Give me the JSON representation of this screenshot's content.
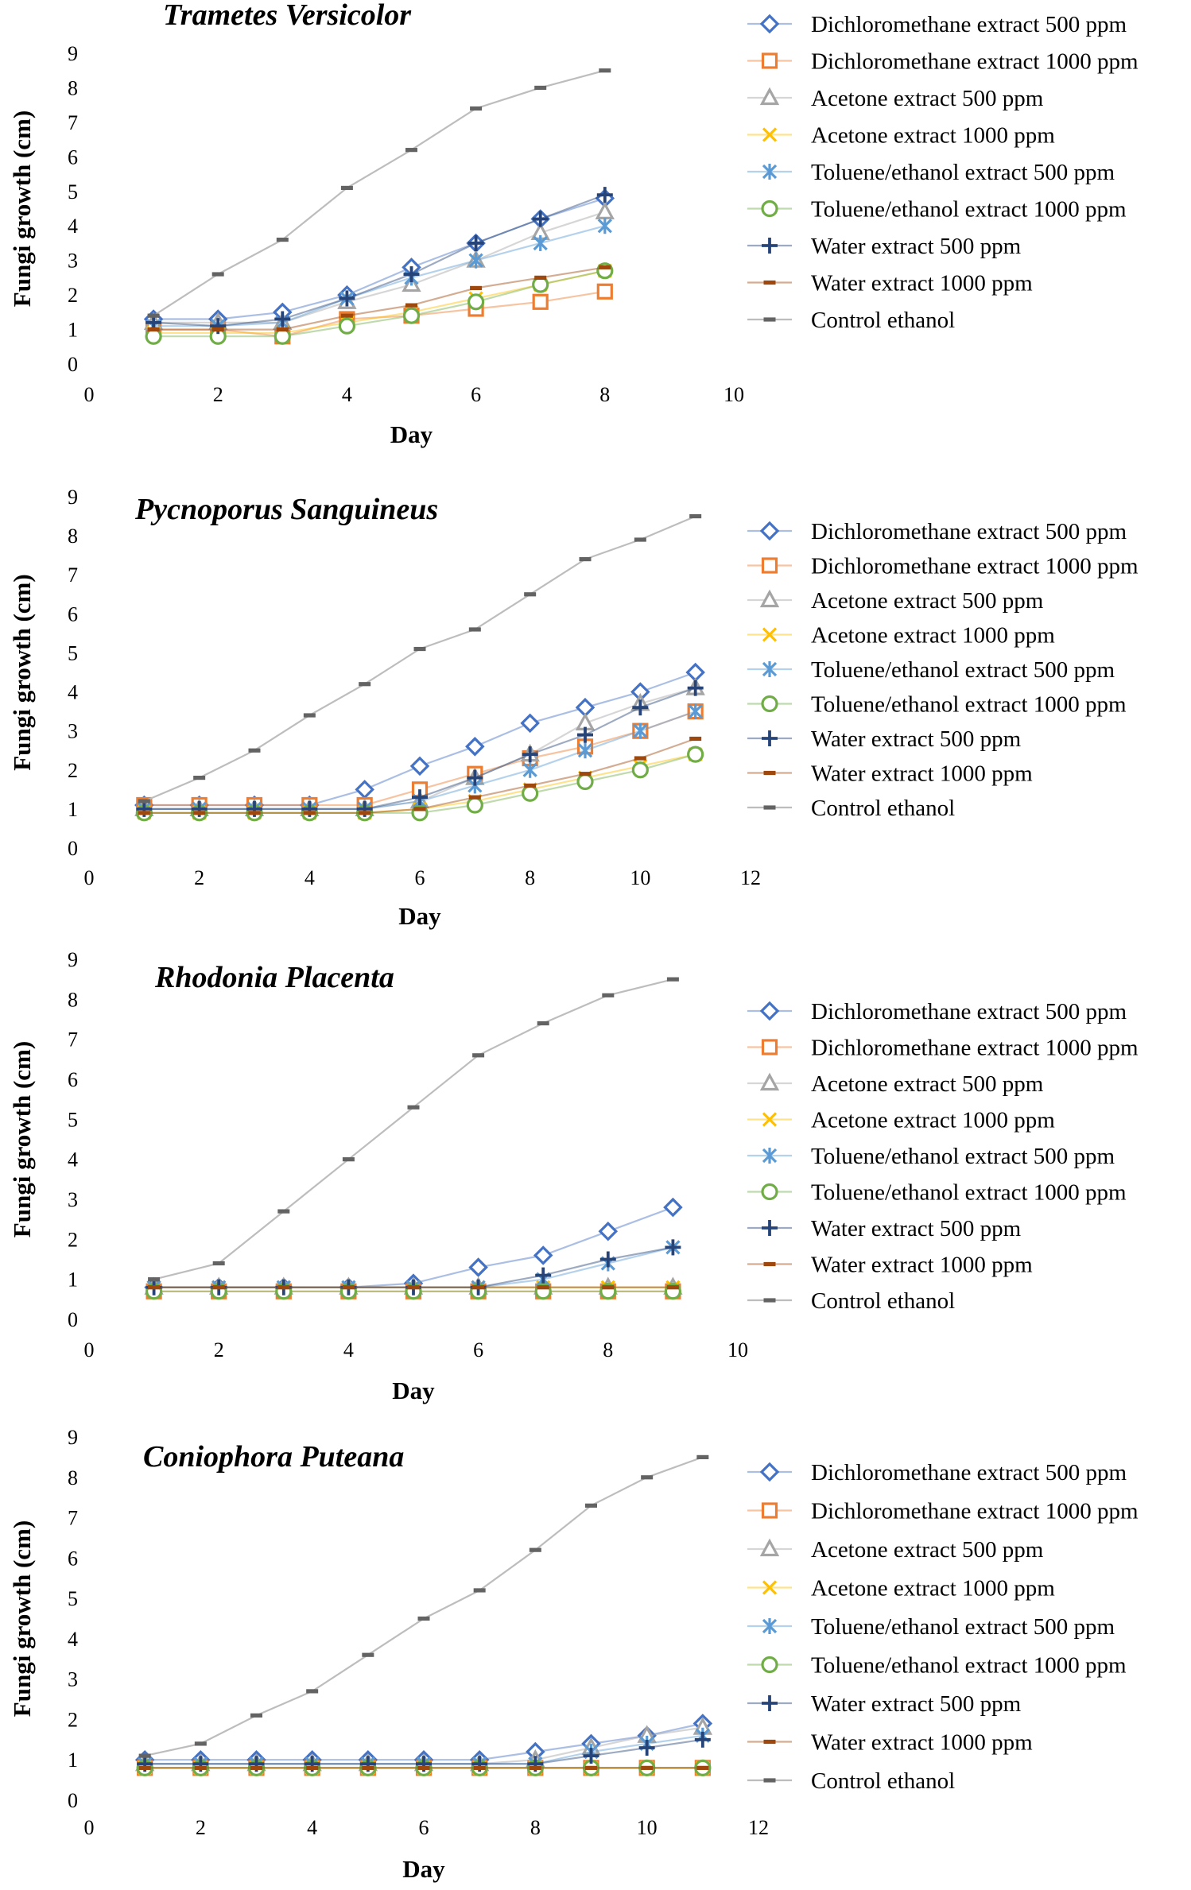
{
  "series_styles": [
    {
      "name": "Dichloromethane extract 500 ppm",
      "color": "#4472C4",
      "marker": "diamond"
    },
    {
      "name": "Dichloromethane extract 1000 ppm",
      "color": "#ED7D31",
      "marker": "square"
    },
    {
      "name": "Acetone extract 500 ppm",
      "color": "#A5A5A5",
      "marker": "triangle"
    },
    {
      "name": "Acetone extract 1000 ppm",
      "color": "#FFC000",
      "marker": "x"
    },
    {
      "name": "Toluene/ethanol extract 500 ppm",
      "color": "#5B9BD5",
      "marker": "asterisk"
    },
    {
      "name": "Toluene/ethanol extract 1000 ppm",
      "color": "#70AD47",
      "marker": "circle"
    },
    {
      "name": "Water extract 500 ppm",
      "color": "#264478",
      "marker": "plus"
    },
    {
      "name": "Water extract 1000 ppm",
      "color": "#9E480E",
      "marker": "dash"
    },
    {
      "name": "Control ethanol",
      "color": "#636363",
      "marker": "dash"
    }
  ],
  "chart_data": [
    {
      "type": "line",
      "title": "Trametes Versicolor",
      "xlabel": "Day",
      "ylabel": "Fungi growth (cm)",
      "xlim": [
        0,
        10
      ],
      "ylim": [
        0,
        9
      ],
      "xticks": [
        "0",
        "2",
        "4",
        "6",
        "8",
        "10"
      ],
      "yticks": [
        "0",
        "1",
        "2",
        "3",
        "4",
        "5",
        "6",
        "7",
        "8",
        "9"
      ],
      "x": [
        1,
        2,
        3,
        4,
        5,
        6,
        7,
        8
      ],
      "series": [
        {
          "name": "Dichloromethane extract 500 ppm",
          "values": [
            1.3,
            1.3,
            1.5,
            2.0,
            2.8,
            3.5,
            4.2,
            4.8
          ]
        },
        {
          "name": "Dichloromethane extract 1000 ppm",
          "values": [
            1.0,
            1.0,
            0.8,
            1.3,
            1.4,
            1.6,
            1.8,
            2.1
          ]
        },
        {
          "name": "Acetone extract 500 ppm",
          "values": [
            1.2,
            1.2,
            1.2,
            1.8,
            2.3,
            3.0,
            3.8,
            4.4
          ]
        },
        {
          "name": "Acetone extract 1000 ppm",
          "values": [
            0.9,
            0.9,
            0.9,
            1.2,
            1.5,
            1.9,
            2.3,
            2.7
          ]
        },
        {
          "name": "Toluene/ethanol extract 500 ppm",
          "values": [
            1.1,
            1.1,
            1.2,
            1.9,
            2.5,
            3.0,
            3.5,
            4.0
          ]
        },
        {
          "name": "Toluene/ethanol extract 1000 ppm",
          "values": [
            0.8,
            0.8,
            0.8,
            1.1,
            1.4,
            1.8,
            2.3,
            2.7
          ]
        },
        {
          "name": "Water extract 500 ppm",
          "values": [
            1.2,
            1.1,
            1.3,
            1.9,
            2.6,
            3.5,
            4.2,
            4.9
          ]
        },
        {
          "name": "Water extract 1000 ppm",
          "values": [
            1.0,
            1.0,
            1.0,
            1.4,
            1.7,
            2.2,
            2.5,
            2.8
          ]
        },
        {
          "name": "Control ethanol",
          "values": [
            1.4,
            2.6,
            3.6,
            5.1,
            6.2,
            7.4,
            8.0,
            8.5
          ]
        }
      ]
    },
    {
      "type": "line",
      "title": "Pycnoporus Sanguineus",
      "xlabel": "Day",
      "ylabel": "Fungi growth (cm)",
      "xlim": [
        0,
        12
      ],
      "ylim": [
        0,
        9
      ],
      "xticks": [
        "0",
        "2",
        "4",
        "6",
        "8",
        "10",
        "12"
      ],
      "yticks": [
        "0",
        "1",
        "2",
        "3",
        "4",
        "5",
        "6",
        "7",
        "8",
        "9"
      ],
      "x": [
        1,
        2,
        3,
        4,
        5,
        6,
        7,
        8,
        9,
        10,
        11
      ],
      "series": [
        {
          "name": "Dichloromethane extract 500 ppm",
          "values": [
            1.1,
            1.1,
            1.1,
            1.1,
            1.5,
            2.1,
            2.6,
            3.2,
            3.6,
            4.0,
            4.5
          ]
        },
        {
          "name": "Dichloromethane extract 1000 ppm",
          "values": [
            1.1,
            1.1,
            1.1,
            1.1,
            1.1,
            1.5,
            1.9,
            2.3,
            2.6,
            3.0,
            3.5
          ]
        },
        {
          "name": "Acetone extract 500 ppm",
          "values": [
            1.0,
            1.0,
            1.0,
            1.0,
            1.0,
            1.2,
            1.8,
            2.4,
            3.2,
            3.7,
            4.1
          ]
        },
        {
          "name": "Acetone extract 1000 ppm",
          "values": [
            0.9,
            0.9,
            0.9,
            0.9,
            0.9,
            1.0,
            1.2,
            1.5,
            1.8,
            2.1,
            2.4
          ]
        },
        {
          "name": "Toluene/ethanol extract 500 ppm",
          "values": [
            1.0,
            1.0,
            1.0,
            1.0,
            1.0,
            1.2,
            1.6,
            2.0,
            2.5,
            3.0,
            3.5
          ]
        },
        {
          "name": "Toluene/ethanol extract 1000 ppm",
          "values": [
            0.9,
            0.9,
            0.9,
            0.9,
            0.9,
            0.9,
            1.1,
            1.4,
            1.7,
            2.0,
            2.4
          ]
        },
        {
          "name": "Water extract 500 ppm",
          "values": [
            1.0,
            1.0,
            1.0,
            1.0,
            1.0,
            1.3,
            1.8,
            2.4,
            2.9,
            3.6,
            4.1
          ]
        },
        {
          "name": "Water extract 1000 ppm",
          "values": [
            0.9,
            0.9,
            0.9,
            0.9,
            0.9,
            1.0,
            1.3,
            1.6,
            1.9,
            2.3,
            2.8
          ]
        },
        {
          "name": "Control ethanol",
          "values": [
            1.2,
            1.8,
            2.5,
            3.4,
            4.2,
            5.1,
            5.6,
            6.5,
            7.4,
            7.9,
            8.5
          ]
        }
      ]
    },
    {
      "type": "line",
      "title": "Rhodonia Placenta",
      "xlabel": "Day",
      "ylabel": "Fungi growth (cm)",
      "xlim": [
        0,
        10
      ],
      "ylim": [
        0,
        9
      ],
      "xticks": [
        "0",
        "2",
        "4",
        "6",
        "8",
        "10"
      ],
      "yticks": [
        "0",
        "1",
        "2",
        "3",
        "4",
        "5",
        "6",
        "7",
        "8",
        "9"
      ],
      "x": [
        1,
        2,
        3,
        4,
        5,
        6,
        7,
        8,
        9
      ],
      "series": [
        {
          "name": "Dichloromethane extract 500 ppm",
          "values": [
            0.8,
            0.8,
            0.8,
            0.8,
            0.9,
            1.3,
            1.6,
            2.2,
            2.8
          ]
        },
        {
          "name": "Dichloromethane extract 1000 ppm",
          "values": [
            0.7,
            0.7,
            0.7,
            0.7,
            0.7,
            0.7,
            0.7,
            0.7,
            0.7
          ]
        },
        {
          "name": "Acetone extract 500 ppm",
          "values": [
            0.8,
            0.8,
            0.8,
            0.8,
            0.8,
            0.8,
            0.8,
            0.8,
            0.8
          ]
        },
        {
          "name": "Acetone extract 1000 ppm",
          "values": [
            0.8,
            0.8,
            0.8,
            0.8,
            0.8,
            0.8,
            0.8,
            0.8,
            0.8
          ]
        },
        {
          "name": "Toluene/ethanol extract 500 ppm",
          "values": [
            0.8,
            0.8,
            0.8,
            0.8,
            0.8,
            0.8,
            1.0,
            1.4,
            1.8
          ]
        },
        {
          "name": "Toluene/ethanol extract 1000 ppm",
          "values": [
            0.7,
            0.7,
            0.7,
            0.7,
            0.7,
            0.7,
            0.7,
            0.7,
            0.7
          ]
        },
        {
          "name": "Water extract 500 ppm",
          "values": [
            0.8,
            0.8,
            0.8,
            0.8,
            0.8,
            0.8,
            1.1,
            1.5,
            1.8
          ]
        },
        {
          "name": "Water extract 1000 ppm",
          "values": [
            0.8,
            0.8,
            0.8,
            0.8,
            0.8,
            0.8,
            0.8,
            0.8,
            0.8
          ]
        },
        {
          "name": "Control ethanol",
          "values": [
            1.0,
            1.4,
            2.7,
            4.0,
            5.3,
            6.6,
            7.4,
            8.1,
            8.5
          ]
        }
      ]
    },
    {
      "type": "line",
      "title": "Coniophora Puteana",
      "xlabel": "Day",
      "ylabel": "Fungi growth (cm)",
      "xlim": [
        0,
        12
      ],
      "ylim": [
        0,
        9
      ],
      "xticks": [
        "0",
        "2",
        "4",
        "6",
        "8",
        "10",
        "12"
      ],
      "yticks": [
        "0",
        "1",
        "2",
        "3",
        "4",
        "5",
        "6",
        "7",
        "8",
        "9"
      ],
      "x": [
        1,
        2,
        3,
        4,
        5,
        6,
        7,
        8,
        9,
        10,
        11
      ],
      "series": [
        {
          "name": "Dichloromethane extract 500 ppm",
          "values": [
            1.0,
            1.0,
            1.0,
            1.0,
            1.0,
            1.0,
            1.0,
            1.2,
            1.4,
            1.6,
            1.9
          ]
        },
        {
          "name": "Dichloromethane extract 1000 ppm",
          "values": [
            0.8,
            0.8,
            0.8,
            0.8,
            0.8,
            0.8,
            0.8,
            0.8,
            0.8,
            0.8,
            0.8
          ]
        },
        {
          "name": "Acetone extract 500 ppm",
          "values": [
            0.9,
            0.9,
            0.9,
            0.9,
            0.9,
            0.9,
            0.9,
            1.0,
            1.3,
            1.6,
            1.8
          ]
        },
        {
          "name": "Acetone extract 1000 ppm",
          "values": [
            0.8,
            0.8,
            0.8,
            0.8,
            0.8,
            0.8,
            0.8,
            0.8,
            0.8,
            0.8,
            0.8
          ]
        },
        {
          "name": "Toluene/ethanol extract 500 ppm",
          "values": [
            0.9,
            0.9,
            0.9,
            0.9,
            0.9,
            0.9,
            0.9,
            0.9,
            1.2,
            1.4,
            1.6
          ]
        },
        {
          "name": "Toluene/ethanol extract 1000 ppm",
          "values": [
            0.8,
            0.8,
            0.8,
            0.8,
            0.8,
            0.8,
            0.8,
            0.8,
            0.8,
            0.8,
            0.8
          ]
        },
        {
          "name": "Water extract 500 ppm",
          "values": [
            0.9,
            0.9,
            0.9,
            0.9,
            0.9,
            0.9,
            0.9,
            0.9,
            1.1,
            1.3,
            1.5
          ]
        },
        {
          "name": "Water extract 1000 ppm",
          "values": [
            0.8,
            0.8,
            0.8,
            0.8,
            0.8,
            0.8,
            0.8,
            0.8,
            0.8,
            0.8,
            0.8
          ]
        },
        {
          "name": "Control ethanol",
          "values": [
            1.1,
            1.4,
            2.1,
            2.7,
            3.6,
            4.5,
            5.2,
            6.2,
            7.3,
            8.0,
            8.5
          ]
        }
      ]
    }
  ]
}
